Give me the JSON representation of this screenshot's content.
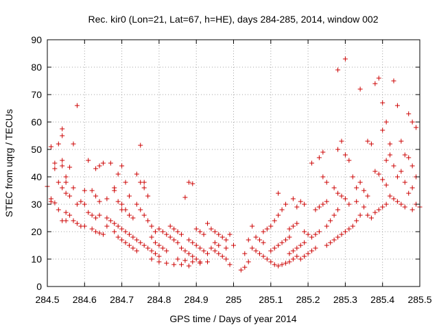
{
  "chart_data": {
    "type": "scatter",
    "title": "Rec. kir0 (Lon=21, Lat=67, h=HE), days 284-285, 2014, window 002",
    "xlabel": "GPS time / Days of year 2014",
    "ylabel": "STEC from uqrg / TECUs",
    "xlim": [
      284.5,
      285.5
    ],
    "ylim": [
      0,
      90
    ],
    "xticks": [
      "284.5",
      "284.6",
      "284.7",
      "284.8",
      "284.9",
      "285",
      "285.1",
      "285.2",
      "285.3",
      "285.4",
      "285.5"
    ],
    "yticks": [
      "0",
      "10",
      "20",
      "30",
      "40",
      "50",
      "60",
      "70",
      "80",
      "90"
    ],
    "grid": true,
    "marker": "+",
    "color": "#cc0000",
    "series": [
      {
        "name": "STEC",
        "points": [
          [
            284.5,
            36.5
          ],
          [
            284.51,
            31
          ],
          [
            284.51,
            32
          ],
          [
            284.52,
            30.5
          ],
          [
            284.52,
            45
          ],
          [
            284.51,
            51
          ],
          [
            284.52,
            43
          ],
          [
            284.53,
            52
          ],
          [
            284.54,
            55
          ],
          [
            284.54,
            57.5
          ],
          [
            284.54,
            46
          ],
          [
            284.54,
            44
          ],
          [
            284.55,
            40
          ],
          [
            284.55,
            38
          ],
          [
            284.56,
            43.5
          ],
          [
            284.53,
            38
          ],
          [
            284.55,
            34
          ],
          [
            284.54,
            36
          ],
          [
            284.57,
            52
          ],
          [
            284.56,
            33
          ],
          [
            284.58,
            66
          ],
          [
            284.58,
            30
          ],
          [
            284.57,
            36
          ],
          [
            284.53,
            28
          ],
          [
            284.55,
            27
          ],
          [
            284.54,
            24
          ],
          [
            284.55,
            24
          ],
          [
            284.57,
            24
          ],
          [
            284.58,
            23
          ],
          [
            284.59,
            22
          ],
          [
            284.56,
            26
          ],
          [
            284.6,
            30
          ],
          [
            284.59,
            31
          ],
          [
            284.61,
            46
          ],
          [
            284.6,
            35
          ],
          [
            284.61,
            27
          ],
          [
            284.62,
            26
          ],
          [
            284.63,
            25
          ],
          [
            284.6,
            22
          ],
          [
            284.62,
            21
          ],
          [
            284.63,
            20
          ],
          [
            284.64,
            19.5
          ],
          [
            284.65,
            19
          ],
          [
            284.63,
            43
          ],
          [
            284.64,
            44
          ],
          [
            284.65,
            45
          ],
          [
            284.62,
            35
          ],
          [
            284.63,
            33
          ],
          [
            284.64,
            31
          ],
          [
            284.66,
            32
          ],
          [
            284.67,
            45
          ],
          [
            284.68,
            36
          ],
          [
            284.69,
            41
          ],
          [
            284.7,
            44
          ],
          [
            284.68,
            35
          ],
          [
            284.69,
            31
          ],
          [
            284.7,
            28
          ],
          [
            284.71,
            38
          ],
          [
            284.72,
            33
          ],
          [
            284.64,
            26
          ],
          [
            284.66,
            25
          ],
          [
            284.67,
            24
          ],
          [
            284.68,
            23
          ],
          [
            284.69,
            22
          ],
          [
            284.7,
            21
          ],
          [
            284.71,
            20
          ],
          [
            284.72,
            19
          ],
          [
            284.73,
            18
          ],
          [
            284.74,
            17
          ],
          [
            284.66,
            22
          ],
          [
            284.68,
            20
          ],
          [
            284.69,
            18
          ],
          [
            284.7,
            17
          ],
          [
            284.71,
            16
          ],
          [
            284.72,
            15
          ],
          [
            284.73,
            14
          ],
          [
            284.74,
            13
          ],
          [
            284.7,
            30
          ],
          [
            284.71,
            28
          ],
          [
            284.72,
            26
          ],
          [
            284.73,
            25
          ],
          [
            284.74,
            41
          ],
          [
            284.75,
            38
          ],
          [
            284.75,
            51.5
          ],
          [
            284.76,
            38
          ],
          [
            284.76,
            36
          ],
          [
            284.77,
            33
          ],
          [
            284.74,
            30
          ],
          [
            284.75,
            28
          ],
          [
            284.76,
            26
          ],
          [
            284.77,
            24
          ],
          [
            284.78,
            22
          ],
          [
            284.79,
            20
          ],
          [
            284.75,
            16
          ],
          [
            284.76,
            15
          ],
          [
            284.77,
            14
          ],
          [
            284.78,
            13
          ],
          [
            284.79,
            12
          ],
          [
            284.8,
            11
          ],
          [
            284.78,
            18
          ],
          [
            284.79,
            16
          ],
          [
            284.8,
            15
          ],
          [
            284.81,
            14
          ],
          [
            284.82,
            13
          ],
          [
            284.8,
            21
          ],
          [
            284.81,
            20
          ],
          [
            284.82,
            19
          ],
          [
            284.83,
            18
          ],
          [
            284.84,
            17
          ],
          [
            284.85,
            16
          ],
          [
            284.78,
            10
          ],
          [
            284.8,
            9
          ],
          [
            284.82,
            8.5
          ],
          [
            284.84,
            8
          ],
          [
            284.86,
            8
          ],
          [
            284.88,
            7.5
          ],
          [
            284.83,
            22
          ],
          [
            284.84,
            21
          ],
          [
            284.85,
            20
          ],
          [
            284.86,
            19
          ],
          [
            284.87,
            32.5
          ],
          [
            284.88,
            38
          ],
          [
            284.89,
            37.5
          ],
          [
            284.86,
            14
          ],
          [
            284.87,
            13
          ],
          [
            284.88,
            12
          ],
          [
            284.89,
            11
          ],
          [
            284.9,
            10
          ],
          [
            284.91,
            9
          ],
          [
            284.85,
            10
          ],
          [
            284.87,
            9.5
          ],
          [
            284.89,
            9
          ],
          [
            284.91,
            8.5
          ],
          [
            284.93,
            9
          ],
          [
            284.88,
            17
          ],
          [
            284.89,
            16
          ],
          [
            284.9,
            15
          ],
          [
            284.91,
            14
          ],
          [
            284.92,
            13
          ],
          [
            284.93,
            12
          ],
          [
            284.9,
            21
          ],
          [
            284.91,
            20
          ],
          [
            284.92,
            19
          ],
          [
            284.93,
            23
          ],
          [
            284.94,
            21
          ],
          [
            284.95,
            20
          ],
          [
            284.96,
            19
          ],
          [
            284.97,
            18
          ],
          [
            284.98,
            17
          ],
          [
            284.99,
            19
          ],
          [
            284.94,
            14
          ],
          [
            284.95,
            13
          ],
          [
            284.96,
            12
          ],
          [
            284.97,
            11
          ],
          [
            284.98,
            10
          ],
          [
            284.99,
            8
          ],
          [
            284.95,
            16
          ],
          [
            284.96,
            15
          ],
          [
            284.98,
            14
          ],
          [
            285.0,
            15
          ],
          [
            285.02,
            6
          ],
          [
            285.03,
            7
          ],
          [
            285.04,
            9
          ],
          [
            285.03,
            12
          ],
          [
            285.04,
            17
          ],
          [
            285.05,
            22
          ],
          [
            285.05,
            14
          ],
          [
            285.06,
            13
          ],
          [
            285.07,
            12
          ],
          [
            285.06,
            18
          ],
          [
            285.07,
            17
          ],
          [
            285.08,
            16
          ],
          [
            285.08,
            11
          ],
          [
            285.09,
            10
          ],
          [
            285.1,
            9
          ],
          [
            285.08,
            20
          ],
          [
            285.09,
            21
          ],
          [
            285.1,
            22
          ],
          [
            285.11,
            8
          ],
          [
            285.12,
            7.5
          ],
          [
            285.13,
            8
          ],
          [
            285.14,
            8.5
          ],
          [
            285.15,
            9
          ],
          [
            285.16,
            10
          ],
          [
            285.17,
            11
          ],
          [
            285.1,
            13
          ],
          [
            285.11,
            14
          ],
          [
            285.12,
            15
          ],
          [
            285.13,
            16
          ],
          [
            285.14,
            17
          ],
          [
            285.15,
            18
          ],
          [
            285.11,
            24
          ],
          [
            285.12,
            26
          ],
          [
            285.13,
            28
          ],
          [
            285.14,
            30
          ],
          [
            285.12,
            34
          ],
          [
            285.15,
            12
          ],
          [
            285.16,
            13
          ],
          [
            285.17,
            14
          ],
          [
            285.18,
            15
          ],
          [
            285.19,
            16
          ],
          [
            285.15,
            21
          ],
          [
            285.16,
            22
          ],
          [
            285.17,
            23
          ],
          [
            285.18,
            31
          ],
          [
            285.19,
            30
          ],
          [
            285.17,
            29
          ],
          [
            285.16,
            32
          ],
          [
            285.18,
            10
          ],
          [
            285.19,
            11
          ],
          [
            285.2,
            12
          ],
          [
            285.21,
            13
          ],
          [
            285.22,
            14
          ],
          [
            285.19,
            20
          ],
          [
            285.2,
            19
          ],
          [
            285.21,
            18
          ],
          [
            285.22,
            19
          ],
          [
            285.23,
            20
          ],
          [
            285.21,
            45
          ],
          [
            285.22,
            28
          ],
          [
            285.23,
            29
          ],
          [
            285.24,
            30
          ],
          [
            285.25,
            31
          ],
          [
            285.23,
            47
          ],
          [
            285.24,
            49
          ],
          [
            285.24,
            40
          ],
          [
            285.25,
            38
          ],
          [
            285.25,
            15
          ],
          [
            285.26,
            16
          ],
          [
            285.27,
            17
          ],
          [
            285.28,
            18
          ],
          [
            285.29,
            19
          ],
          [
            285.25,
            22
          ],
          [
            285.26,
            24
          ],
          [
            285.27,
            26
          ],
          [
            285.28,
            28
          ],
          [
            285.28,
            79
          ],
          [
            285.3,
            83
          ],
          [
            285.27,
            36
          ],
          [
            285.28,
            34
          ],
          [
            285.29,
            33
          ],
          [
            285.3,
            32
          ],
          [
            285.28,
            50
          ],
          [
            285.29,
            53
          ],
          [
            285.3,
            48
          ],
          [
            285.31,
            46
          ],
          [
            285.32,
            40
          ],
          [
            285.3,
            20
          ],
          [
            285.31,
            21
          ],
          [
            285.32,
            22
          ],
          [
            285.33,
            24
          ],
          [
            285.34,
            26
          ],
          [
            285.33,
            36
          ],
          [
            285.34,
            38
          ],
          [
            285.35,
            35
          ],
          [
            285.36,
            33
          ],
          [
            285.34,
            72
          ],
          [
            285.36,
            53
          ],
          [
            285.37,
            52
          ],
          [
            285.38,
            74
          ],
          [
            285.39,
            76
          ],
          [
            285.4,
            67
          ],
          [
            285.41,
            60
          ],
          [
            285.4,
            57
          ],
          [
            285.38,
            42
          ],
          [
            285.39,
            41
          ],
          [
            285.4,
            39
          ],
          [
            285.41,
            37
          ],
          [
            285.36,
            26
          ],
          [
            285.37,
            25
          ],
          [
            285.38,
            27
          ],
          [
            285.39,
            28
          ],
          [
            285.4,
            29
          ],
          [
            285.41,
            30
          ],
          [
            285.42,
            48
          ],
          [
            285.42,
            52
          ],
          [
            285.43,
            75
          ],
          [
            285.44,
            66
          ],
          [
            285.42,
            33
          ],
          [
            285.43,
            32
          ],
          [
            285.44,
            31
          ],
          [
            285.45,
            30
          ],
          [
            285.46,
            29
          ],
          [
            285.45,
            53
          ],
          [
            285.46,
            48
          ],
          [
            285.47,
            63
          ],
          [
            285.48,
            60
          ],
          [
            285.49,
            58
          ],
          [
            285.47,
            47
          ],
          [
            285.48,
            44
          ],
          [
            285.49,
            40
          ],
          [
            285.48,
            36
          ],
          [
            285.47,
            34
          ],
          [
            285.46,
            38
          ],
          [
            285.49,
            30
          ],
          [
            285.48,
            28
          ],
          [
            285.5,
            29
          ],
          [
            285.44,
            40
          ],
          [
            285.45,
            42
          ],
          [
            285.43,
            44
          ],
          [
            285.41,
            46
          ],
          [
            285.35,
            29
          ],
          [
            285.33,
            31
          ],
          [
            285.31,
            30
          ]
        ]
      }
    ]
  }
}
